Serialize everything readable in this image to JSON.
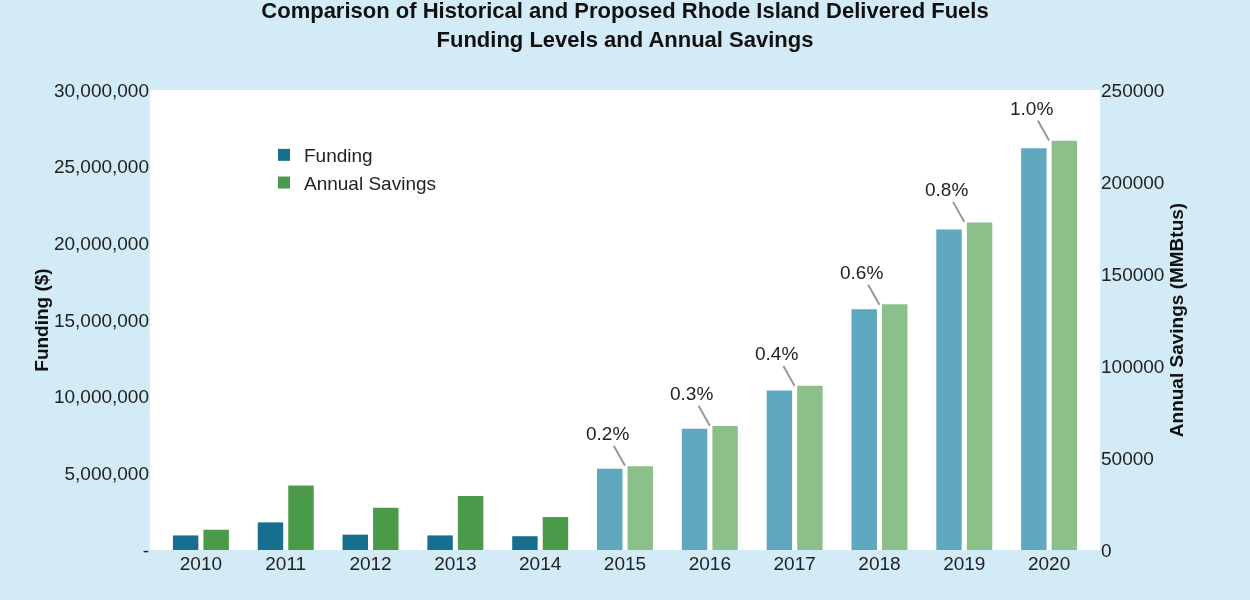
{
  "chart_data": {
    "type": "bar",
    "title": "Comparison of Historical and Proposed Rhode Island Delivered Fuels Funding Levels and Annual Savings",
    "ylabel": "Funding ($)",
    "y2label": "Annual Savings (MMBtus)",
    "categories": [
      "2010",
      "2011",
      "2012",
      "2013",
      "2014",
      "2015",
      "2016",
      "2017",
      "2018",
      "2019",
      "2020"
    ],
    "series": [
      {
        "name": "Funding",
        "color": "#176f8f",
        "colors": [
          "#176f8f",
          "#176f8f",
          "#176f8f",
          "#176f8f",
          "#176f8f",
          "#5fa8c0",
          "#5fa8c0",
          "#5fa8c0",
          "#5fa8c0",
          "#5fa8c0",
          "#5fa8c0"
        ],
        "values": [
          950000,
          1800000,
          1000000,
          950000,
          900000,
          5300000,
          7900000,
          10400000,
          15700000,
          20900000,
          26200000
        ]
      },
      {
        "name": "Annual Savings",
        "color": "#4a9a4a",
        "axis": "y2",
        "colors": [
          "#4a9a4a",
          "#4a9a4a",
          "#4a9a4a",
          "#4a9a4a",
          "#4a9a4a",
          "#8cc08a",
          "#8cc08a",
          "#8cc08a",
          "#8cc08a",
          "#8cc08a",
          "#8cc08a"
        ],
        "values": [
          11000,
          35100,
          23000,
          29400,
          17900,
          45500,
          67400,
          89300,
          133600,
          178000,
          222400
        ]
      }
    ],
    "ylim": [
      0,
      30000000
    ],
    "yticks": [
      {
        "value": 0,
        "label": "-"
      },
      {
        "value": 5000000,
        "label": "5,000,000"
      },
      {
        "value": 10000000,
        "label": "10,000,000"
      },
      {
        "value": 15000000,
        "label": "15,000,000"
      },
      {
        "value": 20000000,
        "label": "20,000,000"
      },
      {
        "value": 25000000,
        "label": "25,000,000"
      },
      {
        "value": 30000000,
        "label": "30,000,000"
      }
    ],
    "y2lim": [
      0,
      250000
    ],
    "y2ticks": [
      0,
      50000,
      100000,
      150000,
      200000,
      250000
    ],
    "annotations": [
      {
        "text": "0.2%",
        "x": "2015",
        "y": 5500000
      },
      {
        "text": "0.3%",
        "x": "2016",
        "y": 8100000
      },
      {
        "text": "0.4%",
        "x": "2017",
        "y": 10700000
      },
      {
        "text": "0.6%",
        "x": "2018",
        "y": 16000000
      },
      {
        "text": "0.8%",
        "x": "2019",
        "y": 21400000
      },
      {
        "text": "1.0%",
        "x": "2020",
        "y": 26700000
      }
    ],
    "legend": "top left",
    "grid": false
  }
}
